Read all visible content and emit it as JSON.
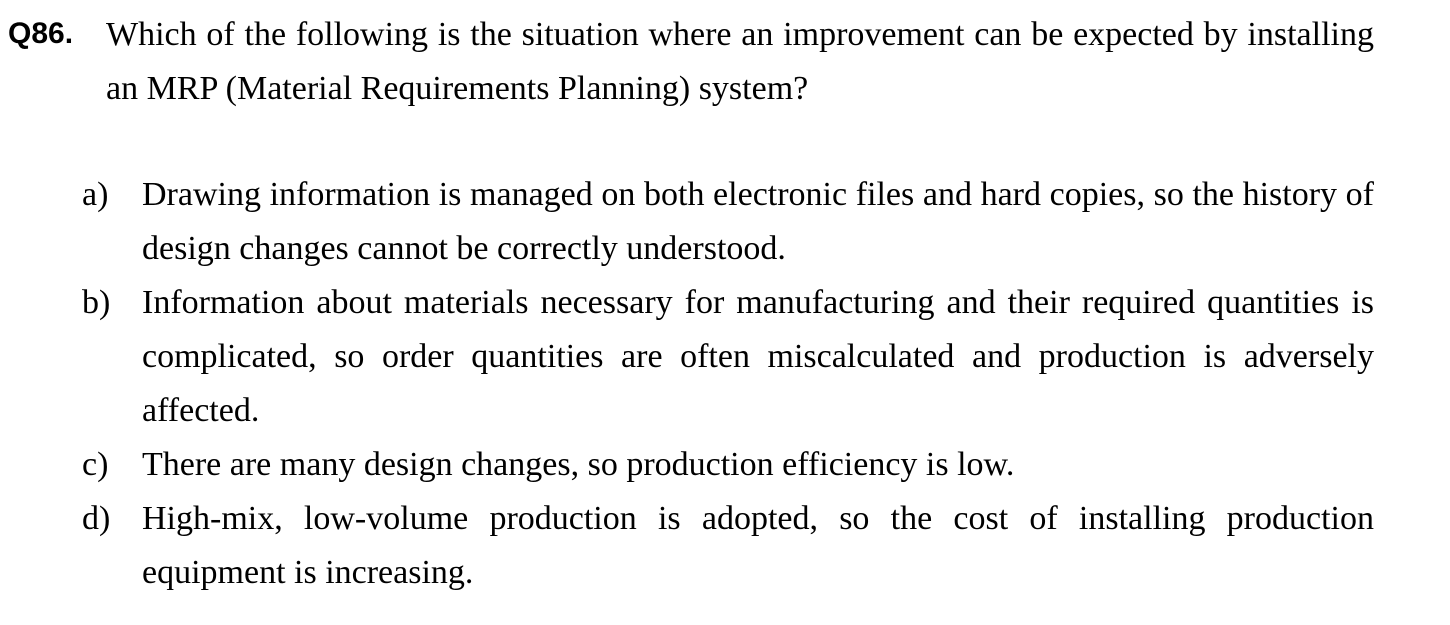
{
  "question": {
    "number": "Q86.",
    "text": "Which of the following is the situation where an improvement can be expected by installing an MRP (Material Requirements Planning) system?"
  },
  "options": [
    {
      "label": "a)",
      "text": "Drawing information is managed on both electronic files and hard copies, so the history of design changes cannot be correctly understood."
    },
    {
      "label": "b)",
      "text": "Information about materials necessary for manufacturing and their required quantities is complicated, so order quantities are often miscalculated and production is adversely affected."
    },
    {
      "label": "c)",
      "text": "There are many design changes, so production efficiency is low."
    },
    {
      "label": "d)",
      "text": "High-mix, low-volume production is adopted, so the cost of installing production equipment is increasing."
    }
  ]
}
